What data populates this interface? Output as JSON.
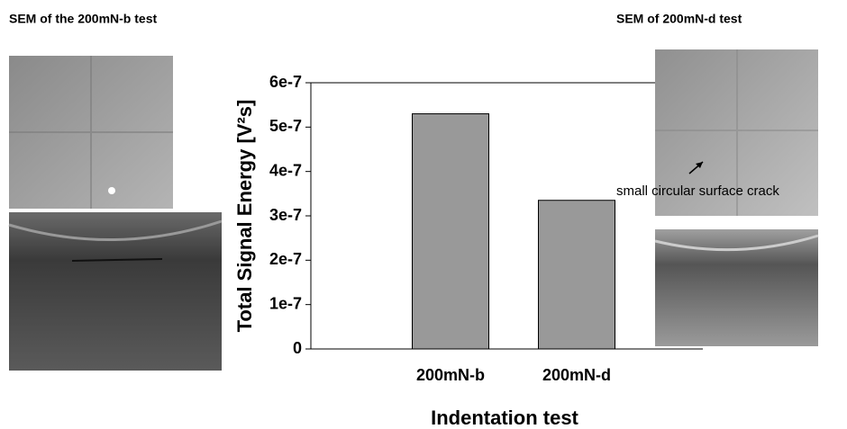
{
  "chart_data": {
    "type": "bar",
    "x_label": "Indentation test",
    "y_label": "Total Signal Energy [V²s]",
    "categories": [
      "200mN-b",
      "200mN-d"
    ],
    "values": [
      5.3e-07,
      3.35e-07
    ],
    "color": "#999999",
    "ylim": [
      0,
      6e-07
    ],
    "yticks": [
      {
        "value": 0,
        "label": "0"
      },
      {
        "value": 1e-07,
        "label": "1e-7"
      },
      {
        "value": 2e-07,
        "label": "2e-7"
      },
      {
        "value": 3e-07,
        "label": "3e-7"
      },
      {
        "value": 4e-07,
        "label": "4e-7"
      },
      {
        "value": 5e-07,
        "label": "5e-7"
      },
      {
        "value": 6e-07,
        "label": "6e-7"
      }
    ],
    "grid": false,
    "annotations": [
      "SEM of the 200mN-b test",
      "SEM of 200mN-d test",
      "small circular surface crack"
    ]
  }
}
